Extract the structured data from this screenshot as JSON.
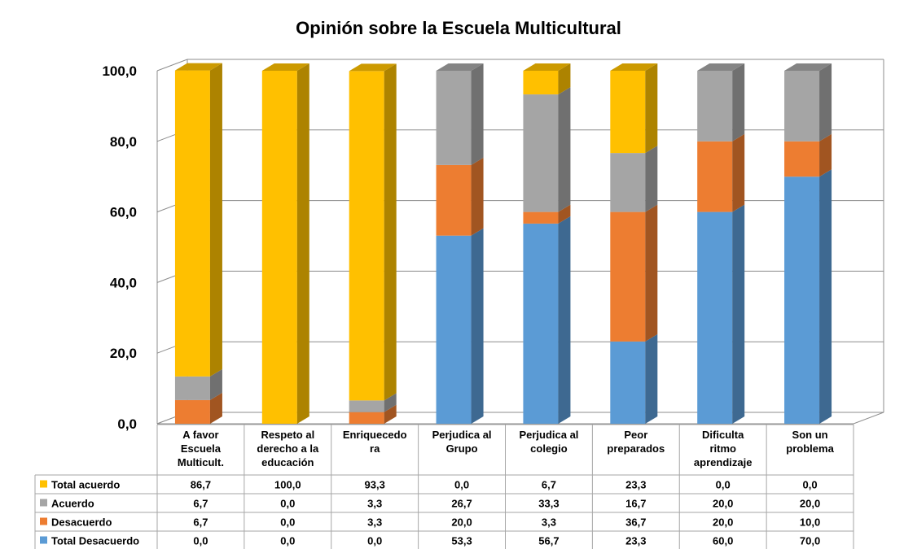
{
  "chart_data": {
    "type": "bar",
    "stacked": true,
    "three_d": true,
    "title": "Opinión sobre la Escuela Multicultural",
    "categories": [
      [
        "A favor",
        "Escuela",
        "Multicult."
      ],
      [
        "Respeto al",
        "derecho a la",
        "educación"
      ],
      [
        "Enriquecedo",
        "ra"
      ],
      [
        "Perjudica al",
        "Grupo"
      ],
      [
        "Perjudica al",
        "colegio"
      ],
      [
        "Peor",
        "preparados"
      ],
      [
        "Dificulta",
        "ritmo",
        "aprendizaje"
      ],
      [
        "Son un",
        "problema"
      ]
    ],
    "series": [
      {
        "name": "Total acuerdo",
        "color": "#FFC000",
        "values": [
          86.7,
          100.0,
          93.3,
          0.0,
          6.7,
          23.3,
          0.0,
          0.0
        ]
      },
      {
        "name": "Acuerdo",
        "color": "#A5A5A5",
        "values": [
          6.7,
          0.0,
          3.3,
          26.7,
          33.3,
          16.7,
          20.0,
          20.0
        ]
      },
      {
        "name": "Desacuerdo",
        "color": "#ED7D31",
        "values": [
          6.7,
          0.0,
          3.3,
          20.0,
          3.3,
          36.7,
          20.0,
          10.0
        ]
      },
      {
        "name": "Total Desacuerdo",
        "color": "#5B9BD5",
        "values": [
          0.0,
          0.0,
          0.0,
          53.3,
          56.7,
          23.3,
          60.0,
          70.0
        ]
      }
    ],
    "stack_order_bottom_to_top": [
      "Total Desacuerdo",
      "Desacuerdo",
      "Acuerdo",
      "Total acuerdo"
    ],
    "yticks": [
      "0,0",
      "20,0",
      "40,0",
      "60,0",
      "80,0",
      "100,0"
    ],
    "ylim": [
      0,
      100
    ],
    "grid": true,
    "data_table": true,
    "legend": "in data table"
  }
}
